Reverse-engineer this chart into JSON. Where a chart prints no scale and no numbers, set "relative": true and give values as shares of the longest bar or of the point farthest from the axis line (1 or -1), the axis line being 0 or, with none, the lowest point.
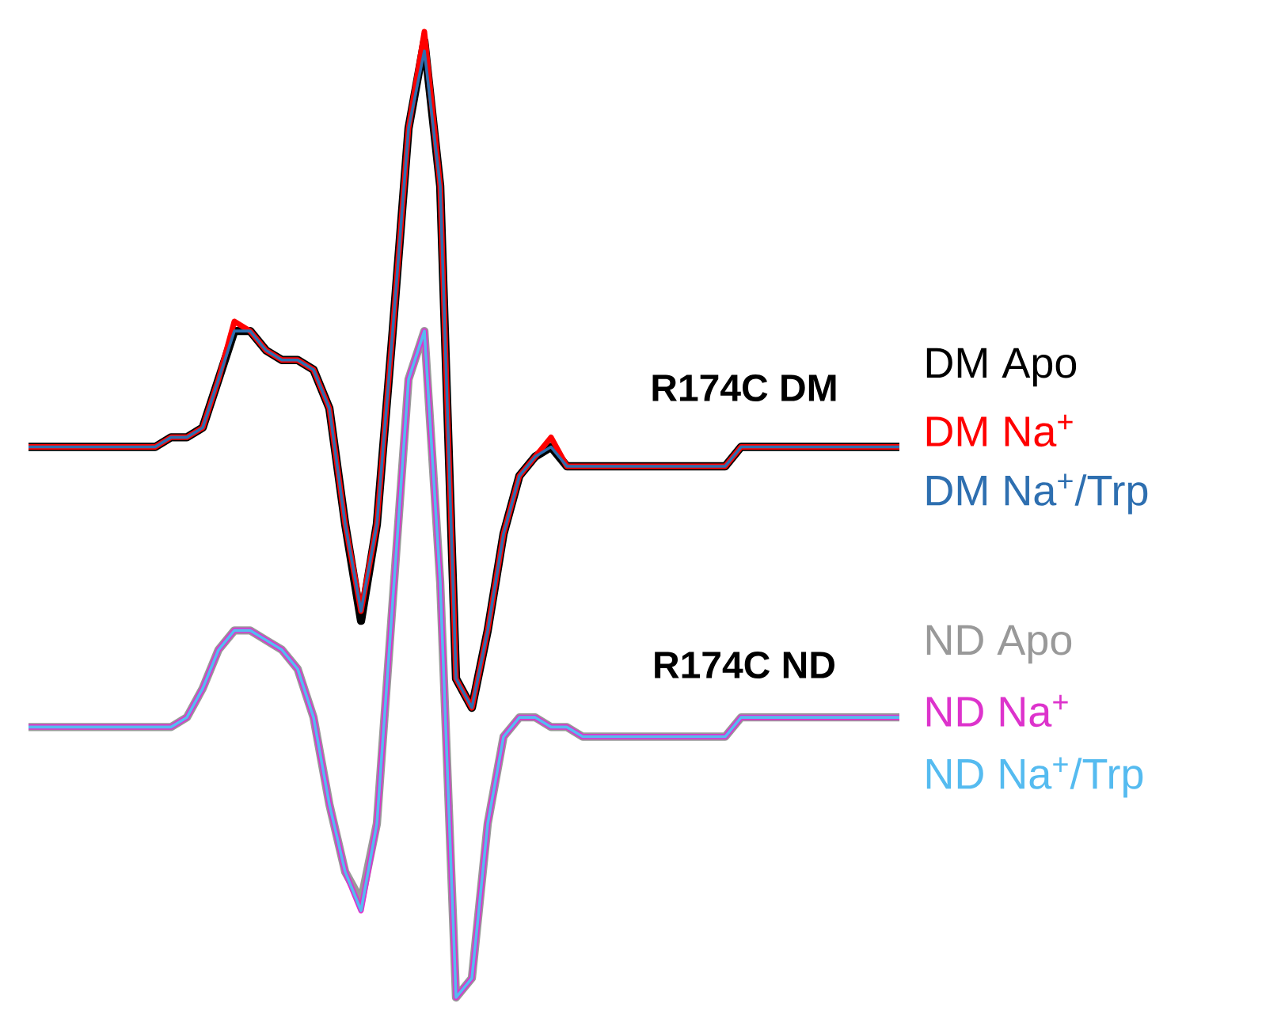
{
  "chart_data": {
    "type": "line",
    "relative": true,
    "categories": [
      null,
      null,
      null,
      null,
      null,
      null,
      null,
      null,
      null,
      null,
      null,
      null,
      null,
      null,
      null,
      null,
      null,
      null,
      null,
      null,
      null,
      null,
      null,
      null,
      null,
      null,
      null,
      null,
      null,
      null,
      null,
      null,
      null,
      null,
      null,
      null,
      null,
      null,
      null,
      null,
      null,
      null,
      null,
      null,
      null,
      null,
      null,
      null,
      null,
      null,
      null,
      null,
      null,
      null,
      null,
      null
    ],
    "annotations": [
      "**R174C DM**",
      "**R174C ND**"
    ],
    "series": [
      {
        "name": "DM Apo",
        "color": "#000000",
        "values": [
          0.57,
          0.57,
          0.57,
          0.57,
          0.57,
          0.57,
          0.57,
          0.57,
          0.57,
          0.58,
          0.58,
          0.59,
          0.64,
          0.69,
          0.69,
          0.67,
          0.66,
          0.66,
          0.65,
          0.61,
          0.49,
          0.39,
          0.49,
          0.69,
          0.9,
          0.99,
          0.84,
          0.33,
          0.3,
          0.38,
          0.48,
          0.54,
          0.56,
          0.57,
          0.55,
          0.55,
          0.55,
          0.55,
          0.55,
          0.55,
          0.55,
          0.55,
          0.55,
          0.55,
          0.55,
          0.57,
          0.57,
          0.57,
          0.57,
          0.57,
          0.57,
          0.57,
          0.57,
          0.57,
          0.57,
          0.57
        ]
      },
      {
        "name": "DM Na$^{+}$",
        "color": "#ff0000",
        "values": [
          0.57,
          0.57,
          0.57,
          0.57,
          0.57,
          0.57,
          0.57,
          0.57,
          0.57,
          0.58,
          0.58,
          0.59,
          0.64,
          0.7,
          0.69,
          0.67,
          0.66,
          0.66,
          0.65,
          0.61,
          0.49,
          0.4,
          0.49,
          0.69,
          0.9,
          1,
          0.84,
          0.33,
          0.3,
          0.38,
          0.48,
          0.54,
          0.56,
          0.58,
          0.55,
          0.55,
          0.55,
          0.55,
          0.55,
          0.55,
          0.55,
          0.55,
          0.55,
          0.55,
          0.55,
          0.57,
          0.57,
          0.57,
          0.57,
          0.57,
          0.57,
          0.57,
          0.57,
          0.57,
          0.57,
          0.57
        ]
      },
      {
        "name": "DM Na$^{+}$/Trp",
        "color": "#2e6fb0",
        "values": [
          0.57,
          0.57,
          0.57,
          0.57,
          0.57,
          0.57,
          0.57,
          0.57,
          0.57,
          0.58,
          0.58,
          0.59,
          0.64,
          0.69,
          0.69,
          0.67,
          0.66,
          0.66,
          0.65,
          0.61,
          0.49,
          0.4,
          0.49,
          0.69,
          0.9,
          0.98,
          0.84,
          0.33,
          0.3,
          0.38,
          0.48,
          0.54,
          0.56,
          0.57,
          0.55,
          0.55,
          0.55,
          0.55,
          0.55,
          0.55,
          0.55,
          0.55,
          0.55,
          0.55,
          0.55,
          0.57,
          0.57,
          0.57,
          0.57,
          0.57,
          0.57,
          0.57,
          0.57,
          0.57,
          0.57,
          0.57
        ]
      },
      {
        "name": "ND Apo",
        "color": "#999999",
        "values": [
          0.28,
          0.28,
          0.28,
          0.28,
          0.28,
          0.28,
          0.28,
          0.28,
          0.28,
          0.28,
          0.29,
          0.32,
          0.36,
          0.38,
          0.38,
          0.37,
          0.36,
          0.34,
          0.29,
          0.2,
          0.13,
          0.1,
          0.18,
          0.41,
          0.64,
          0.69,
          0.43,
          0,
          0.02,
          0.18,
          0.27,
          0.29,
          0.29,
          0.28,
          0.28,
          0.27,
          0.27,
          0.27,
          0.27,
          0.27,
          0.27,
          0.27,
          0.27,
          0.27,
          0.27,
          0.29,
          0.29,
          0.29,
          0.29,
          0.29,
          0.29,
          0.29,
          0.29,
          0.29,
          0.29,
          0.29
        ]
      },
      {
        "name": "ND Na$^{+}$",
        "color": "#dd33cc",
        "values": [
          0.28,
          0.28,
          0.28,
          0.28,
          0.28,
          0.28,
          0.28,
          0.28,
          0.28,
          0.28,
          0.29,
          0.32,
          0.36,
          0.38,
          0.38,
          0.37,
          0.36,
          0.34,
          0.29,
          0.2,
          0.13,
          0.09,
          0.18,
          0.41,
          0.64,
          0.69,
          0.43,
          0,
          0.02,
          0.18,
          0.27,
          0.29,
          0.29,
          0.28,
          0.28,
          0.27,
          0.27,
          0.27,
          0.27,
          0.27,
          0.27,
          0.27,
          0.27,
          0.27,
          0.27,
          0.29,
          0.29,
          0.29,
          0.29,
          0.29,
          0.29,
          0.29,
          0.29,
          0.29,
          0.29,
          0.29
        ]
      },
      {
        "name": "ND Na$^{+}$/Trp",
        "color": "#55bbf0",
        "values": [
          0.28,
          0.28,
          0.28,
          0.28,
          0.28,
          0.28,
          0.28,
          0.28,
          0.28,
          0.28,
          0.29,
          0.32,
          0.36,
          0.38,
          0.38,
          0.37,
          0.36,
          0.34,
          0.29,
          0.2,
          0.13,
          0.09,
          0.18,
          0.41,
          0.64,
          0.69,
          0.43,
          0,
          0.02,
          0.18,
          0.27,
          0.29,
          0.29,
          0.28,
          0.28,
          0.27,
          0.27,
          0.27,
          0.27,
          0.27,
          0.27,
          0.27,
          0.27,
          0.27,
          0.27,
          0.29,
          0.29,
          0.29,
          0.29,
          0.29,
          0.29,
          0.29,
          0.29,
          0.29,
          0.29,
          0.29
        ]
      }
    ]
  }
}
